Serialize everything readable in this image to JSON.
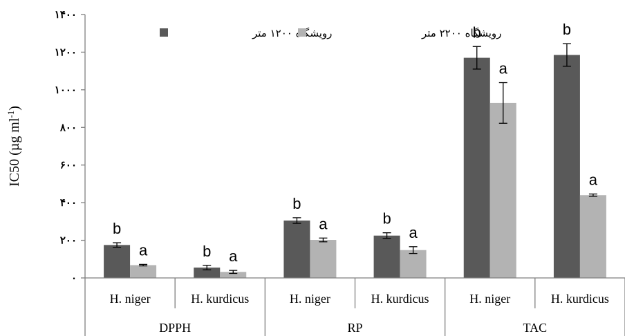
{
  "chart_data": {
    "type": "bar",
    "ylabel": "IC50 (µg ml",
    "ylabel_sup": "-1",
    "ylabel_close": ")",
    "ylim": [
      0,
      1400
    ],
    "yticks": [
      0,
      200,
      400,
      600,
      800,
      1000,
      1200,
      1400
    ],
    "ytick_labels": [
      "٠",
      "٢٠٠",
      "۴٠٠",
      "۶٠٠",
      "٨٠٠",
      "١٠٠٠",
      "١٢٠٠",
      "١۴٠٠"
    ],
    "groups": [
      {
        "label": "DPPH",
        "categories": [
          "H. niger",
          "H. kurdicus"
        ]
      },
      {
        "label": "RP",
        "categories": [
          "H. niger",
          "H. kurdicus"
        ]
      },
      {
        "label": "TAC",
        "categories": [
          "H. niger",
          "H. kurdicus"
        ]
      }
    ],
    "series": [
      {
        "name": "رویشگاه ١٢٠٠ متر",
        "color": "#595959",
        "values": [
          175,
          55,
          305,
          225,
          1170,
          1185
        ],
        "errors": [
          12,
          12,
          15,
          15,
          60,
          60
        ],
        "letters": [
          "b",
          "b",
          "b",
          "b",
          "b",
          "b"
        ]
      },
      {
        "name": "رویشگاه ٢٢٠٠ متر",
        "color": "#b3b3b3",
        "values": [
          68,
          32,
          202,
          148,
          930,
          440
        ],
        "errors": [
          4,
          8,
          10,
          18,
          108,
          6
        ],
        "letters": [
          "a",
          "a",
          "a",
          "a",
          "a",
          "a"
        ]
      }
    ],
    "legend_position": "top",
    "grid": false
  }
}
